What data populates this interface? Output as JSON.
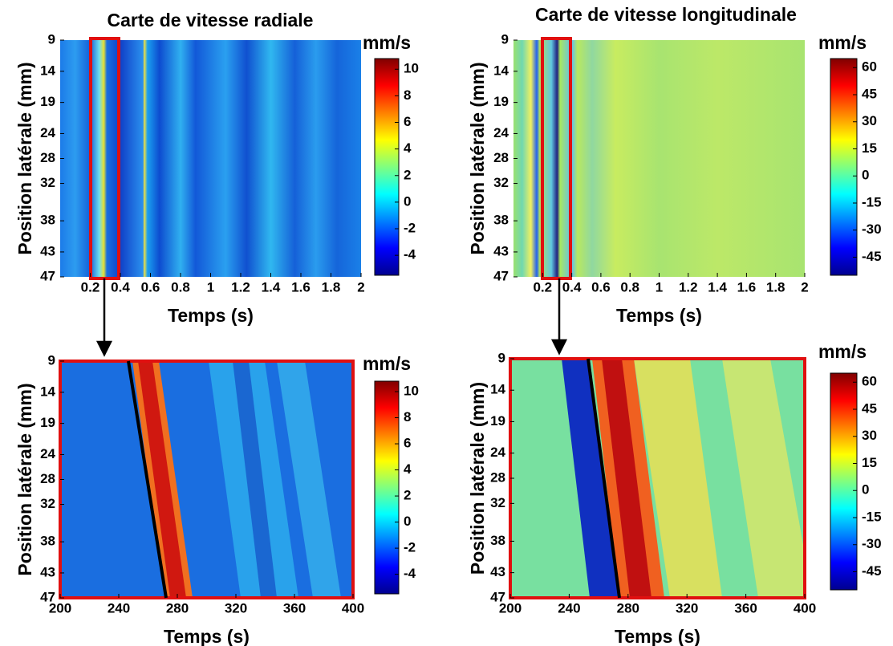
{
  "chart_data": [
    {
      "type": "heatmap",
      "title": "Carte de vitesse radiale",
      "xlabel": "Temps (s)",
      "ylabel": "Position latérale (mm)",
      "xlim": [
        0,
        2
      ],
      "xticks": [
        0.2,
        0.4,
        0.6,
        0.8,
        1,
        1.2,
        1.4,
        1.6,
        1.8,
        2
      ],
      "ylim": [
        9,
        47
      ],
      "yticks": [
        9,
        14,
        19,
        24,
        28,
        32,
        38,
        43,
        47
      ],
      "colorbar_label": "mm/s",
      "clim": [
        -5.5,
        10.8
      ],
      "cticks": [
        10,
        8,
        6,
        4,
        2,
        0,
        -2,
        -4
      ]
    },
    {
      "type": "heatmap",
      "title": "Carte de vitesse longitudinale",
      "xlabel": "Temps (s)",
      "ylabel": "Position latérale (mm)",
      "xlim": [
        0,
        2
      ],
      "xticks": [
        0.2,
        0.4,
        0.6,
        0.8,
        1,
        1.2,
        1.4,
        1.6,
        1.8,
        2
      ],
      "ylim": [
        9,
        47
      ],
      "yticks": [
        9,
        14,
        19,
        24,
        28,
        32,
        38,
        43,
        47
      ],
      "colorbar_label": "mm/s",
      "clim": [
        -55,
        65
      ],
      "cticks": [
        60,
        45,
        30,
        15,
        0,
        -15,
        -30,
        -45
      ]
    },
    {
      "type": "heatmap",
      "xlabel": "Temps (s)",
      "ylabel": "Position latérale (mm)",
      "xlim": [
        200,
        400
      ],
      "xticks": [
        200,
        240,
        280,
        320,
        360,
        400
      ],
      "ylim": [
        9,
        47
      ],
      "yticks": [
        9,
        14,
        19,
        24,
        28,
        32,
        38,
        43,
        47
      ],
      "colorbar_label": "mm/s",
      "clim": [
        -5.5,
        10.8
      ],
      "cticks": [
        10,
        8,
        6,
        4,
        2,
        0,
        -2,
        -4
      ]
    },
    {
      "type": "heatmap",
      "xlabel": "Temps (s)",
      "ylabel": "Position latérale (mm)",
      "xlim": [
        200,
        400
      ],
      "xticks": [
        200,
        240,
        280,
        320,
        360,
        400
      ],
      "ylim": [
        9,
        47
      ],
      "yticks": [
        9,
        14,
        19,
        24,
        28,
        32,
        38,
        43,
        47
      ],
      "colorbar_label": "mm/s",
      "clim": [
        -55,
        65
      ],
      "cticks": [
        60,
        45,
        30,
        15,
        0,
        -15,
        -30,
        -45
      ]
    }
  ]
}
